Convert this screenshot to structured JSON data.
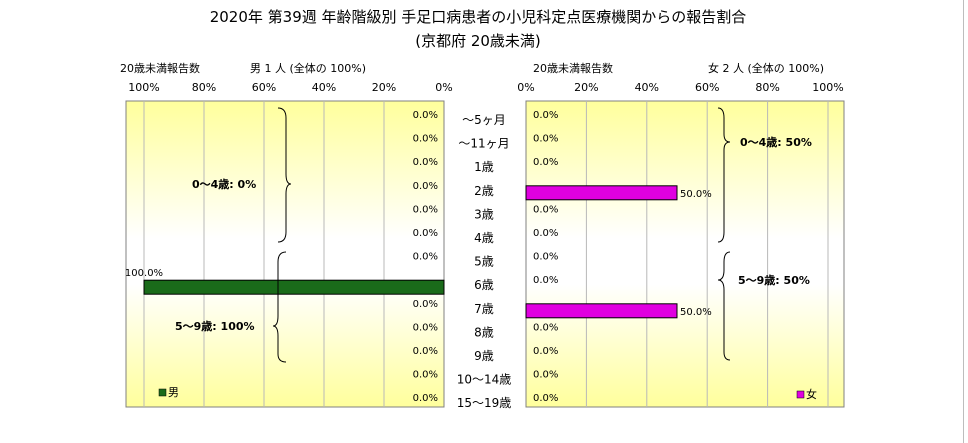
{
  "title": {
    "line1": "2020年 第39週 年齢階級別 手足口病患者の小児科定点医療機関からの報告割合",
    "line2": "(京都府 20歳未満)"
  },
  "colors": {
    "male": "#1a6b1a",
    "female": "#e000e0",
    "panel_edge": "#ffff9c",
    "panel_center": "#ffffff"
  },
  "ages": [
    "～5ヶ月",
    "～11ヶ月",
    "1歳",
    "2歳",
    "3歳",
    "4歳",
    "5歳",
    "6歳",
    "7歳",
    "8歳",
    "9歳",
    "10～14歳",
    "15～19歳"
  ],
  "left_panel": {
    "count_label": "20歳未満報告数",
    "total_label": "男  1 人 (全体の 100%)",
    "ticks": [
      "100%",
      "80%",
      "60%",
      "40%",
      "20%",
      "0%"
    ],
    "legend": "男",
    "bracket_0_4": "0～4歳: 0%",
    "bracket_5_9": "5～9歳: 100%"
  },
  "right_panel": {
    "count_label": "20歳未満報告数",
    "total_label": "女  2 人 (全体の  100%)",
    "ticks": [
      "0%",
      "20%",
      "40%",
      "60%",
      "80%",
      "100%"
    ],
    "legend": "女",
    "bracket_0_4": "0～4歳: 50%",
    "bracket_5_9": "5～9歳: 50%"
  },
  "chart_data": {
    "type": "bar",
    "orientation": "horizontal",
    "categories": [
      "～5ヶ月",
      "～11ヶ月",
      "1歳",
      "2歳",
      "3歳",
      "4歳",
      "5歳",
      "6歳",
      "7歳",
      "8歳",
      "9歳",
      "10～14歳",
      "15～19歳"
    ],
    "xlim": [
      0,
      100
    ],
    "series": [
      {
        "name": "男",
        "values": [
          0,
          0,
          0,
          0,
          0,
          0,
          0,
          100,
          0,
          0,
          0,
          0,
          0
        ],
        "labels": [
          "0.0%",
          "0.0%",
          "0.0%",
          "0.0%",
          "0.0%",
          "0.0%",
          "0.0%",
          "100.0%",
          "0.0%",
          "0.0%",
          "0.0%",
          "0.0%",
          "0.0%"
        ]
      },
      {
        "name": "女",
        "values": [
          0,
          0,
          0,
          50,
          0,
          0,
          0,
          0,
          50,
          0,
          0,
          0,
          0
        ],
        "labels": [
          "0.0%",
          "0.0%",
          "0.0%",
          "50.0%",
          "0.0%",
          "0.0%",
          "0.0%",
          "0.0%",
          "50.0%",
          "0.0%",
          "0.0%",
          "0.0%",
          "0.0%"
        ]
      }
    ]
  }
}
